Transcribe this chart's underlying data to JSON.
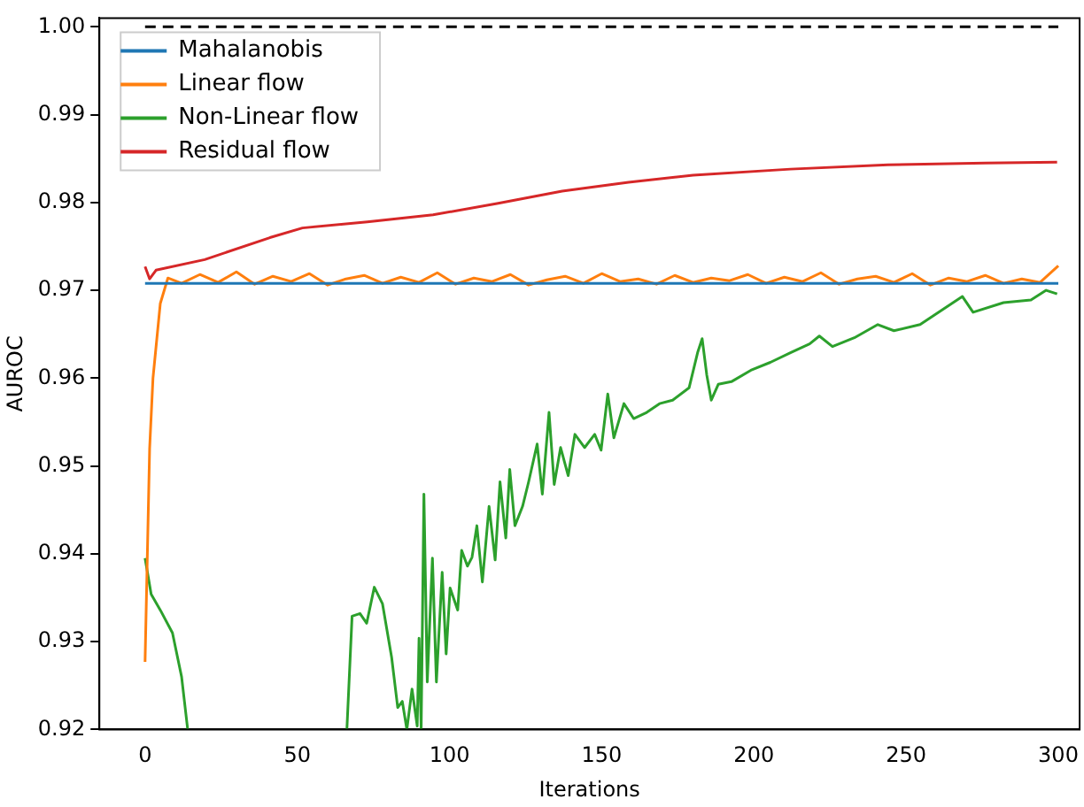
{
  "chart_data": {
    "type": "line",
    "xlabel": "Iterations",
    "ylabel": "AUROC",
    "xlim": [
      -15,
      307
    ],
    "ylim": [
      0.92,
      1.001
    ],
    "xticks": [
      0,
      50,
      100,
      150,
      200,
      250,
      300
    ],
    "yticks": [
      {
        "value": 0.92,
        "label": "0.92"
      },
      {
        "value": 0.93,
        "label": "0.93"
      },
      {
        "value": 0.94,
        "label": "0.94"
      },
      {
        "value": 0.95,
        "label": "0.95"
      },
      {
        "value": 0.96,
        "label": "0.96"
      },
      {
        "value": 0.97,
        "label": "0.97"
      },
      {
        "value": 0.98,
        "label": "0.98"
      },
      {
        "value": 0.99,
        "label": "0.99"
      },
      {
        "value": 1.0,
        "label": "1.00"
      }
    ],
    "grid": false,
    "legend": "top left",
    "marker": "none",
    "line_style": "solid",
    "series": [
      {
        "name": "Mahalanobis",
        "color": "#1f77b4",
        "x": [
          0,
          300
        ],
        "values": [
          0.9708,
          0.9708
        ]
      },
      {
        "name": "Linear flow",
        "color": "#ff7f0e",
        "x": [
          0,
          1.5,
          2.6,
          5,
          7.5,
          12,
          18,
          24,
          30,
          36,
          42,
          48,
          54,
          60,
          66,
          72,
          78,
          84,
          90,
          96,
          102,
          108,
          114,
          120,
          126,
          132,
          138,
          144,
          150,
          156,
          162,
          168,
          174,
          180,
          186,
          192,
          198,
          204,
          210,
          216,
          222,
          228,
          234,
          240,
          246,
          252,
          258,
          264,
          270,
          276,
          282,
          288,
          294,
          300
        ],
        "values": [
          0.9277,
          0.952,
          0.96,
          0.9685,
          0.9714,
          0.9708,
          0.9718,
          0.9709,
          0.9721,
          0.9707,
          0.9716,
          0.971,
          0.9719,
          0.9706,
          0.9713,
          0.9717,
          0.9708,
          0.9715,
          0.9709,
          0.972,
          0.9707,
          0.9714,
          0.971,
          0.9718,
          0.9706,
          0.9712,
          0.9716,
          0.9708,
          0.9719,
          0.971,
          0.9713,
          0.9707,
          0.9717,
          0.9709,
          0.9714,
          0.9711,
          0.9718,
          0.9708,
          0.9715,
          0.971,
          0.972,
          0.9707,
          0.9713,
          0.9716,
          0.9709,
          0.9719,
          0.9706,
          0.9714,
          0.971,
          0.9717,
          0.9708,
          0.9713,
          0.9709,
          0.9728
        ]
      },
      {
        "name": "Non-Linear flow",
        "color": "#2ca02c",
        "x": [
          0,
          2,
          5,
          9,
          12,
          14,
          40,
          66.3,
          68,
          70.6,
          72.8,
          75.3,
          78,
          81,
          83,
          84.5,
          86,
          87.7,
          89.4,
          90,
          90.7,
          91.6,
          92.7,
          94.4,
          95.7,
          97.6,
          98.9,
          100.2,
          102.7,
          104,
          105.9,
          107.4,
          109,
          110.8,
          113,
          115,
          116.6,
          118.5,
          119.8,
          121.5,
          124,
          126,
          128.8,
          130.5,
          132.7,
          134.4,
          136.5,
          139,
          141.2,
          144.4,
          147.7,
          149.8,
          152,
          154,
          157.3,
          160.5,
          164.8,
          169,
          173.3,
          178.7,
          181.5,
          183,
          184.5,
          186,
          188.3,
          192.6,
          199,
          205.4,
          212,
          218.3,
          221.5,
          225.8,
          233,
          240.7,
          246,
          254.6,
          268.5,
          272,
          282,
          291,
          296,
          299.6
        ],
        "values": [
          0.9395,
          0.9354,
          0.9336,
          0.931,
          0.926,
          0.92,
          null,
          0.92,
          0.9329,
          0.9332,
          0.9321,
          0.9362,
          0.9343,
          0.9282,
          0.9225,
          0.9232,
          0.92,
          0.9246,
          0.9204,
          0.9304,
          0.92,
          0.9468,
          0.9254,
          0.9395,
          0.9254,
          0.9379,
          0.9286,
          0.9361,
          0.9336,
          0.9404,
          0.9386,
          0.9396,
          0.9432,
          0.9368,
          0.9454,
          0.9393,
          0.9482,
          0.9418,
          0.9496,
          0.9432,
          0.9454,
          0.9482,
          0.9525,
          0.9468,
          0.9561,
          0.9479,
          0.9521,
          0.9489,
          0.9536,
          0.9521,
          0.9536,
          0.9518,
          0.9582,
          0.9532,
          0.9571,
          0.9554,
          0.9561,
          0.9571,
          0.9575,
          0.9589,
          0.9629,
          0.9645,
          0.9604,
          0.9575,
          0.9593,
          0.9596,
          0.9609,
          0.9618,
          0.9629,
          0.9639,
          0.9648,
          0.9636,
          0.9646,
          0.9661,
          0.9654,
          0.9661,
          0.9693,
          0.9675,
          0.9686,
          0.9689,
          0.97,
          0.9696
        ]
      },
      {
        "name": "Residual flow",
        "color": "#d62728",
        "x": [
          0,
          1.5,
          3.6,
          19.6,
          41,
          51.7,
          73,
          94.6,
          116,
          137,
          158.8,
          180,
          212,
          244,
          276,
          299.6
        ],
        "values": [
          0.9727,
          0.9713,
          0.9723,
          0.9735,
          0.976,
          0.9771,
          0.9778,
          0.9786,
          0.9799,
          0.9813,
          0.9823,
          0.9831,
          0.9838,
          0.9843,
          0.9845,
          0.9846
        ]
      },
      {
        "color": "#000000",
        "line_style": "dashed",
        "x": [
          0,
          300
        ],
        "values": [
          1.0,
          1.0
        ]
      }
    ]
  }
}
